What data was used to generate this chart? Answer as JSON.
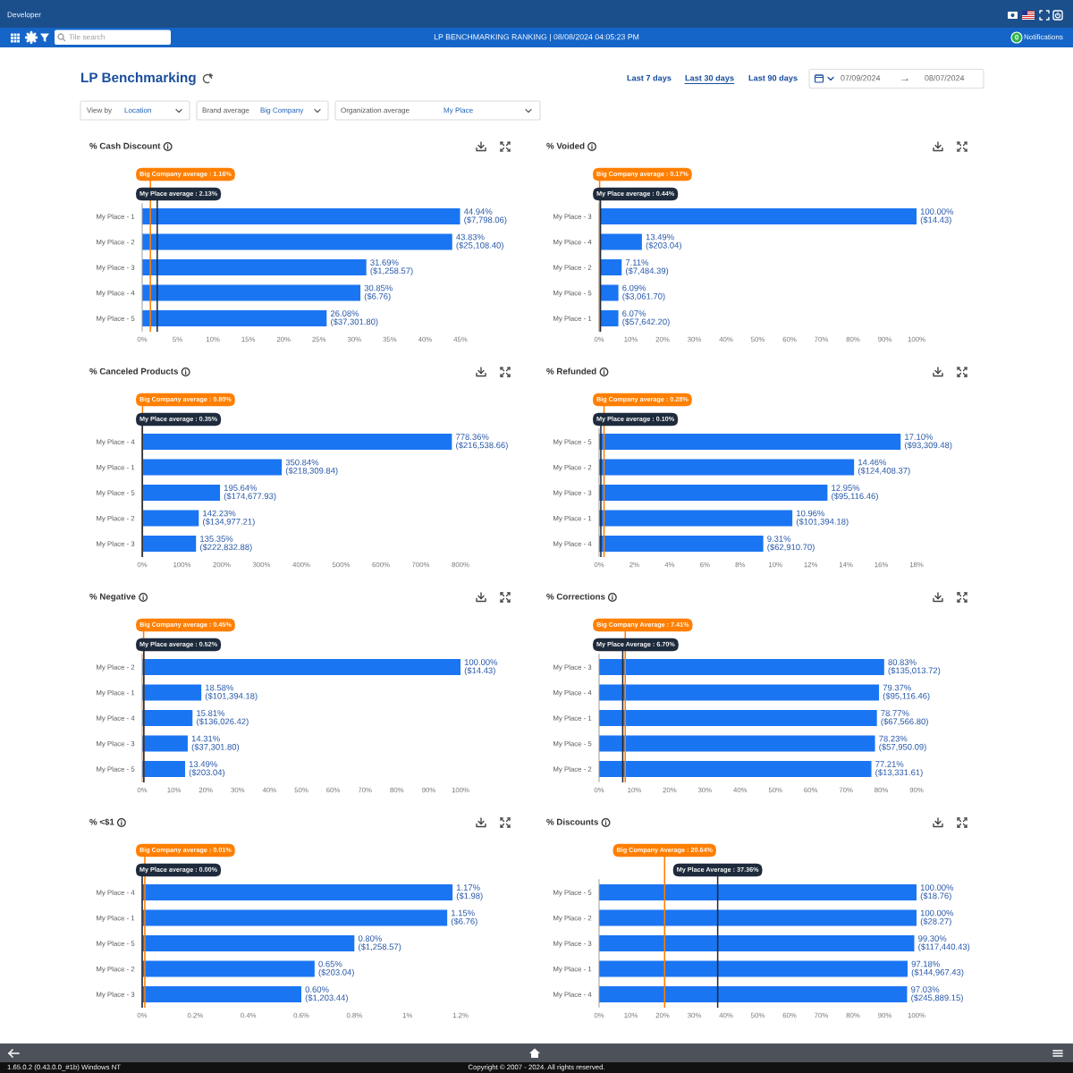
{
  "chart_data": [
    {
      "type": "other",
      "title": "LP Benchmarking",
      "annotations": [
        "Developer",
        "Tile search",
        "LP BENCHMARKING RANKING | 08/08/2024 04:05:23 PM",
        "0",
        "Notifications",
        "Last 7 days",
        "Last 30 days",
        "Last 90 days",
        "07/09/2024",
        "→",
        "08/07/2024",
        "View by",
        "Location",
        "Brand average",
        "Big Company",
        "Organization average",
        "My Place"
      ]
    },
    {
      "type": "bar",
      "orientation": "horizontal",
      "title": "% Cash Discount",
      "categories": [
        "My Place - 1",
        "My Place - 2",
        "My Place - 3",
        "My Place - 4",
        "My Place - 5"
      ],
      "values": [
        44.94,
        43.83,
        31.69,
        30.85,
        26.08
      ],
      "color": "#1a75f2",
      "value_labels": [
        "44.94%\n($7,798.06)",
        "43.83%\n($25,108.40)",
        "31.69%\n($1,258.57)",
        "30.85%\n($6.76)",
        "26.08%\n($37,301.80)"
      ],
      "xlim": [
        0,
        45
      ],
      "xticks": [
        {
          "value": 0,
          "label": "0%"
        },
        {
          "value": 5,
          "label": "5%"
        },
        {
          "value": 10,
          "label": "10%"
        },
        {
          "value": 15,
          "label": "15%"
        },
        {
          "value": 20,
          "label": "20%"
        },
        {
          "value": 25,
          "label": "25%"
        },
        {
          "value": 30,
          "label": "30%"
        },
        {
          "value": 35,
          "label": "35%"
        },
        {
          "value": 40,
          "label": "40%"
        },
        {
          "value": 45,
          "label": "45%"
        }
      ],
      "ref_lines": [
        {
          "axis": "x",
          "value": 1.16,
          "label": "Big Company average : 1.16%",
          "color": "#ff7f00"
        },
        {
          "axis": "x",
          "value": 2.13,
          "label": "My Place average : 2.13%",
          "color": "#1e2b3d"
        }
      ]
    },
    {
      "type": "bar",
      "orientation": "horizontal",
      "title": "% Voided",
      "categories": [
        "My Place - 3",
        "My Place - 4",
        "My Place - 2",
        "My Place - 5",
        "My Place - 1"
      ],
      "values": [
        100.0,
        13.49,
        7.11,
        6.09,
        6.07
      ],
      "color": "#1a75f2",
      "value_labels": [
        "100.00%\n($14.43)",
        "13.49%\n($203.04)",
        "7.11%\n($7,484.39)",
        "6.09%\n($3,061.70)",
        "6.07%\n($57,642.20)"
      ],
      "xlim": [
        0,
        100
      ],
      "xticks": [
        {
          "value": 0,
          "label": "0%"
        },
        {
          "value": 10,
          "label": "10%"
        },
        {
          "value": 20,
          "label": "20%"
        },
        {
          "value": 30,
          "label": "30%"
        },
        {
          "value": 40,
          "label": "40%"
        },
        {
          "value": 50,
          "label": "50%"
        },
        {
          "value": 60,
          "label": "60%"
        },
        {
          "value": 70,
          "label": "70%"
        },
        {
          "value": 80,
          "label": "80%"
        },
        {
          "value": 90,
          "label": "90%"
        },
        {
          "value": 100,
          "label": "100%"
        }
      ],
      "ref_lines": [
        {
          "axis": "x",
          "value": 0.17,
          "label": "Big Company average : 0.17%",
          "color": "#ff7f00"
        },
        {
          "axis": "x",
          "value": 0.44,
          "label": "My Place average : 0.44%",
          "color": "#1e2b3d"
        }
      ]
    },
    {
      "type": "bar",
      "orientation": "horizontal",
      "title": "% Canceled Products",
      "categories": [
        "My Place - 4",
        "My Place - 1",
        "My Place - 5",
        "My Place - 2",
        "My Place - 3"
      ],
      "values": [
        778.36,
        350.84,
        195.64,
        142.23,
        135.35
      ],
      "color": "#1a75f2",
      "value_labels": [
        "778.36%\n($216,538.66)",
        "350.84%\n($218,309.84)",
        "195.64%\n($174,677.93)",
        "142.23%\n($134,977.21)",
        "135.35%\n($222,832.88)"
      ],
      "xlim": [
        0,
        800
      ],
      "xticks": [
        {
          "value": 0,
          "label": "0%"
        },
        {
          "value": 100,
          "label": "100%"
        },
        {
          "value": 200,
          "label": "200%"
        },
        {
          "value": 300,
          "label": "300%"
        },
        {
          "value": 400,
          "label": "400%"
        },
        {
          "value": 500,
          "label": "500%"
        },
        {
          "value": 600,
          "label": "600%"
        },
        {
          "value": 700,
          "label": "700%"
        },
        {
          "value": 800,
          "label": "800%"
        }
      ],
      "ref_lines": [
        {
          "axis": "x",
          "value": 0.8,
          "label": "Big Company average : 0.80%",
          "color": "#ff7f00"
        },
        {
          "axis": "x",
          "value": 0.35,
          "label": "My Place average : 0.35%",
          "color": "#1e2b3d"
        }
      ]
    },
    {
      "type": "bar",
      "orientation": "horizontal",
      "title": "% Refunded",
      "categories": [
        "My Place - 5",
        "My Place - 2",
        "My Place - 3",
        "My Place - 1",
        "My Place - 4"
      ],
      "values": [
        17.1,
        14.46,
        12.95,
        10.96,
        9.31
      ],
      "color": "#1a75f2",
      "value_labels": [
        "17.10%\n($93,309.48)",
        "14.46%\n($124,408.37)",
        "12.95%\n($95,116.46)",
        "10.96%\n($101,394.18)",
        "9.31%\n($62,910.70)"
      ],
      "xlim": [
        0,
        18
      ],
      "xticks": [
        {
          "value": 0,
          "label": "0%"
        },
        {
          "value": 2,
          "label": "2%"
        },
        {
          "value": 4,
          "label": "4%"
        },
        {
          "value": 6,
          "label": "6%"
        },
        {
          "value": 8,
          "label": "8%"
        },
        {
          "value": 10,
          "label": "10%"
        },
        {
          "value": 12,
          "label": "12%"
        },
        {
          "value": 14,
          "label": "14%"
        },
        {
          "value": 16,
          "label": "16%"
        },
        {
          "value": 18,
          "label": "18%"
        }
      ],
      "ref_lines": [
        {
          "axis": "x",
          "value": 0.28,
          "label": "Big Company average : 0.28%",
          "color": "#ff7f00"
        },
        {
          "axis": "x",
          "value": 0.1,
          "label": "My Place average : 0.10%",
          "color": "#1e2b3d"
        }
      ]
    },
    {
      "type": "bar",
      "orientation": "horizontal",
      "title": "% Negative",
      "categories": [
        "My Place - 2",
        "My Place - 1",
        "My Place - 4",
        "My Place - 3",
        "My Place - 5"
      ],
      "values": [
        100.0,
        18.58,
        15.81,
        14.31,
        13.49
      ],
      "color": "#1a75f2",
      "value_labels": [
        "100.00%\n($14.43)",
        "18.58%\n($101,394.18)",
        "15.81%\n($136,026.42)",
        "14.31%\n($37,301.80)",
        "13.49%\n($203.04)"
      ],
      "xlim": [
        0,
        100
      ],
      "xticks": [
        {
          "value": 0,
          "label": "0%"
        },
        {
          "value": 10,
          "label": "10%"
        },
        {
          "value": 20,
          "label": "20%"
        },
        {
          "value": 30,
          "label": "30%"
        },
        {
          "value": 40,
          "label": "40%"
        },
        {
          "value": 50,
          "label": "50%"
        },
        {
          "value": 60,
          "label": "60%"
        },
        {
          "value": 70,
          "label": "70%"
        },
        {
          "value": 80,
          "label": "80%"
        },
        {
          "value": 90,
          "label": "90%"
        },
        {
          "value": 100,
          "label": "100%"
        }
      ],
      "ref_lines": [
        {
          "axis": "x",
          "value": 0.45,
          "label": "Big Company average : 0.45%",
          "color": "#ff7f00"
        },
        {
          "axis": "x",
          "value": 0.52,
          "label": "My Place average : 0.52%",
          "color": "#1e2b3d"
        }
      ]
    },
    {
      "type": "bar",
      "orientation": "horizontal",
      "title": "% Corrections",
      "categories": [
        "My Place - 3",
        "My Place - 4",
        "My Place - 1",
        "My Place - 5",
        "My Place - 2"
      ],
      "values": [
        80.83,
        79.37,
        78.77,
        78.23,
        77.21
      ],
      "color": "#1a75f2",
      "value_labels": [
        "80.83%\n($135,013.72)",
        "79.37%\n($95,116.46)",
        "78.77%\n($67,566.80)",
        "78.23%\n($57,950.09)",
        "77.21%\n($13,331.61)"
      ],
      "xlim": [
        0,
        90
      ],
      "xticks": [
        {
          "value": 0,
          "label": "0%"
        },
        {
          "value": 10,
          "label": "10%"
        },
        {
          "value": 20,
          "label": "20%"
        },
        {
          "value": 30,
          "label": "30%"
        },
        {
          "value": 40,
          "label": "40%"
        },
        {
          "value": 50,
          "label": "50%"
        },
        {
          "value": 60,
          "label": "60%"
        },
        {
          "value": 70,
          "label": "70%"
        },
        {
          "value": 80,
          "label": "80%"
        },
        {
          "value": 90,
          "label": "90%"
        }
      ],
      "ref_lines": [
        {
          "axis": "x",
          "value": 7.41,
          "label": "Big Company Average : 7.41%",
          "color": "#ff7f00"
        },
        {
          "axis": "x",
          "value": 6.7,
          "label": "My Place Average : 6.70%",
          "color": "#1e2b3d"
        }
      ]
    },
    {
      "type": "bar",
      "orientation": "horizontal",
      "title": "% <$1",
      "categories": [
        "My Place - 4",
        "My Place - 1",
        "My Place - 5",
        "My Place - 2",
        "My Place - 3"
      ],
      "values": [
        1.17,
        1.15,
        0.8,
        0.65,
        0.6
      ],
      "color": "#1a75f2",
      "value_labels": [
        "1.17%\n($1.98)",
        "1.15%\n($6.76)",
        "0.80%\n($1,258.57)",
        "0.65%\n($203.04)",
        "0.60%\n($1,203.44)"
      ],
      "xlim": [
        0,
        1.2
      ],
      "xticks": [
        {
          "value": 0,
          "label": "0%"
        },
        {
          "value": 0.2,
          "label": "0.2%"
        },
        {
          "value": 0.4,
          "label": "0.4%"
        },
        {
          "value": 0.6,
          "label": "0.6%"
        },
        {
          "value": 0.8,
          "label": "0.8%"
        },
        {
          "value": 1,
          "label": "1%"
        },
        {
          "value": 1.2,
          "label": "1.2%"
        }
      ],
      "ref_lines": [
        {
          "axis": "x",
          "value": 0.01,
          "label": "Big Company average : 0.01%",
          "color": "#ff7f00"
        },
        {
          "axis": "x",
          "value": 0.0,
          "label": "My Place average : 0.00%",
          "color": "#1e2b3d"
        }
      ]
    },
    {
      "type": "bar",
      "orientation": "horizontal",
      "title": "% Discounts",
      "categories": [
        "My Place - 5",
        "My Place - 2",
        "My Place - 3",
        "My Place - 1",
        "My Place - 4"
      ],
      "values": [
        100.0,
        100.0,
        99.3,
        97.18,
        97.03
      ],
      "color": "#1a75f2",
      "value_labels": [
        "100.00%\n($18.76)",
        "100.00%\n($28.27)",
        "99.30%\n($117,440.43)",
        "97.18%\n($144,967.43)",
        "97.03%\n($245,889.15)"
      ],
      "xlim": [
        0,
        100
      ],
      "xticks": [
        {
          "value": 0,
          "label": "0%"
        },
        {
          "value": 10,
          "label": "10%"
        },
        {
          "value": 20,
          "label": "20%"
        },
        {
          "value": 30,
          "label": "30%"
        },
        {
          "value": 40,
          "label": "40%"
        },
        {
          "value": 50,
          "label": "50%"
        },
        {
          "value": 60,
          "label": "60%"
        },
        {
          "value": 70,
          "label": "70%"
        },
        {
          "value": 80,
          "label": "80%"
        },
        {
          "value": 90,
          "label": "90%"
        },
        {
          "value": 100,
          "label": "100%"
        }
      ],
      "ref_lines": [
        {
          "axis": "x",
          "value": 20.64,
          "label": "Big Company Average : 20.64%",
          "color": "#ff7f00"
        },
        {
          "axis": "x",
          "value": 37.36,
          "label": "My Place Average : 37.36%",
          "color": "#1e2b3d"
        }
      ]
    },
    {
      "type": "other",
      "annotations": [
        "1.65.0.2 (0.43.0.0_#1b) Windows NT",
        "Copyright © 2007 - 2024. All rights reserved."
      ]
    }
  ]
}
